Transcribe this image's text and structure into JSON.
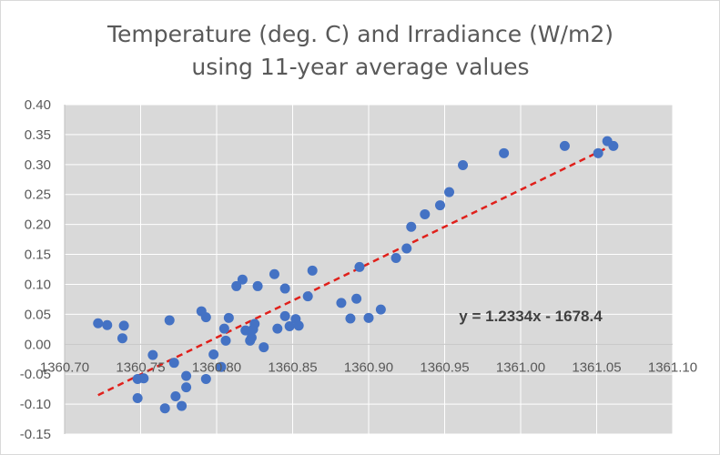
{
  "chart_data": {
    "type": "scatter",
    "title_lines": [
      "Temperature (deg. C) and Irradiance (W/m2)",
      "using 11-year average values"
    ],
    "xlabel": "",
    "ylabel": "",
    "xlim": [
      1360.7,
      1361.1
    ],
    "ylim": [
      -0.15,
      0.4
    ],
    "x_ticks": [
      1360.7,
      1360.75,
      1360.8,
      1360.85,
      1360.9,
      1360.95,
      1361.0,
      1361.05,
      1361.1
    ],
    "x_tick_labels": [
      "1360.70",
      "1360.75",
      "1360.80",
      "1360.85",
      "1360.90",
      "1360.95",
      "1361.00",
      "1361.05",
      "1361.10"
    ],
    "y_ticks": [
      0.4,
      0.35,
      0.3,
      0.25,
      0.2,
      0.15,
      0.1,
      0.05,
      0.0,
      -0.05,
      -0.1,
      -0.15
    ],
    "y_tick_labels": [
      "0.40",
      "0.35",
      "0.30",
      "0.25",
      "0.20",
      "0.15",
      "0.10",
      "0.05",
      "0.00",
      "-0.05",
      "-0.10",
      "-0.15"
    ],
    "grid": true,
    "colors": {
      "points": "#4472c4",
      "trendline": "#e0201b",
      "grid": "#ffffff",
      "plot_bg": "#d9d9d9",
      "axis": "#bfbfbf"
    },
    "points": [
      [
        1360.722,
        0.035
      ],
      [
        1360.728,
        0.032
      ],
      [
        1360.738,
        0.01
      ],
      [
        1360.739,
        0.031
      ],
      [
        1360.748,
        -0.058
      ],
      [
        1360.748,
        -0.09
      ],
      [
        1360.752,
        -0.057
      ],
      [
        1360.758,
        -0.018
      ],
      [
        1360.766,
        -0.107
      ],
      [
        1360.769,
        0.04
      ],
      [
        1360.772,
        -0.031
      ],
      [
        1360.773,
        -0.087
      ],
      [
        1360.777,
        -0.103
      ],
      [
        1360.78,
        -0.072
      ],
      [
        1360.78,
        -0.053
      ],
      [
        1360.79,
        0.055
      ],
      [
        1360.793,
        0.045
      ],
      [
        1360.793,
        -0.058
      ],
      [
        1360.798,
        -0.017
      ],
      [
        1360.803,
        -0.038
      ],
      [
        1360.805,
        0.026
      ],
      [
        1360.806,
        0.006
      ],
      [
        1360.808,
        0.044
      ],
      [
        1360.813,
        0.097
      ],
      [
        1360.817,
        0.108
      ],
      [
        1360.819,
        0.023
      ],
      [
        1360.822,
        0.006
      ],
      [
        1360.823,
        0.011
      ],
      [
        1360.824,
        0.025
      ],
      [
        1360.825,
        0.034
      ],
      [
        1360.827,
        0.097
      ],
      [
        1360.831,
        -0.005
      ],
      [
        1360.838,
        0.117
      ],
      [
        1360.84,
        0.026
      ],
      [
        1360.845,
        0.093
      ],
      [
        1360.845,
        0.047
      ],
      [
        1360.848,
        0.03
      ],
      [
        1360.852,
        0.042
      ],
      [
        1360.854,
        0.031
      ],
      [
        1360.86,
        0.08
      ],
      [
        1360.863,
        0.123
      ],
      [
        1360.882,
        0.069
      ],
      [
        1360.888,
        0.043
      ],
      [
        1360.892,
        0.076
      ],
      [
        1360.894,
        0.129
      ],
      [
        1360.9,
        0.044
      ],
      [
        1360.908,
        0.058
      ],
      [
        1360.918,
        0.144
      ],
      [
        1360.925,
        0.16
      ],
      [
        1360.928,
        0.196
      ],
      [
        1360.937,
        0.217
      ],
      [
        1360.947,
        0.232
      ],
      [
        1360.953,
        0.254
      ],
      [
        1360.962,
        0.299
      ],
      [
        1360.989,
        0.319
      ],
      [
        1361.029,
        0.331
      ],
      [
        1361.051,
        0.319
      ],
      [
        1361.057,
        0.339
      ],
      [
        1361.061,
        0.331
      ]
    ],
    "trendline": {
      "equation": "y = 1.2334x - 1678.4",
      "x_start": 1360.722,
      "x_end": 1361.061,
      "y_start": -0.085,
      "y_end": 0.333
    }
  }
}
